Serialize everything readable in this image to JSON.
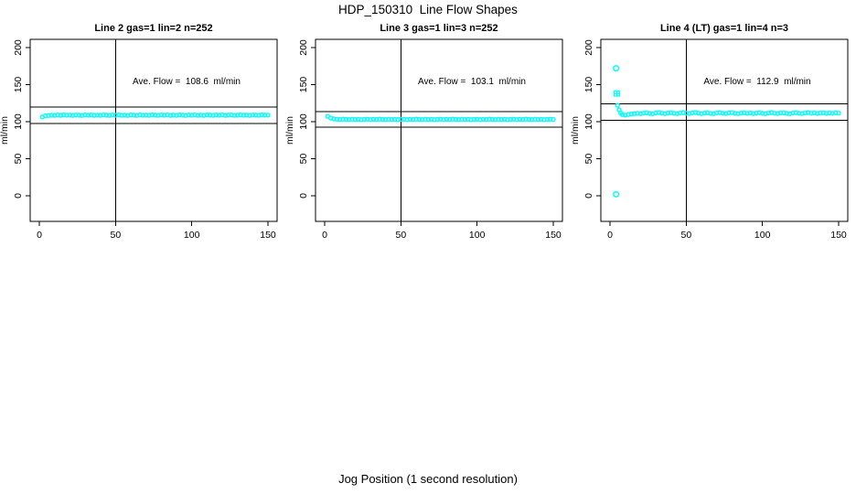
{
  "page": {
    "title": "HDP_150310  Line Flow Shapes",
    "xlabel": "Jog Position (1 second resolution)"
  },
  "colors": {
    "points": "#00FFFF",
    "axis": "#000000",
    "background": "#FFFFFF"
  },
  "chart_data": [
    {
      "type": "scatter",
      "title": "Line 2 gas=1 lin=2 n=252",
      "annotation": "Ave. Flow =  108.6  ml/min",
      "ave_flow_ml_min": 108.6,
      "n": 252,
      "ylabel": "ml/min",
      "xlim": [
        0,
        150
      ],
      "ylim": [
        0,
        200
      ],
      "xticks": [
        0,
        50,
        100,
        150
      ],
      "yticks": [
        0,
        50,
        100,
        150,
        200
      ],
      "vline_x": 50,
      "hlines": [
        119.5,
        97.7
      ],
      "marker": "circle",
      "points": [
        [
          2,
          106.4
        ],
        [
          4,
          107.9
        ],
        [
          6,
          108.3
        ],
        [
          8,
          108.7
        ],
        [
          10,
          108.5
        ],
        [
          12,
          109.0
        ],
        [
          14,
          108.6
        ],
        [
          16,
          109.1
        ],
        [
          18,
          108.7
        ],
        [
          20,
          108.9
        ],
        [
          22,
          108.5
        ],
        [
          24,
          109.0
        ],
        [
          26,
          108.8
        ],
        [
          28,
          108.4
        ],
        [
          30,
          109.1
        ],
        [
          32,
          108.7
        ],
        [
          34,
          109.0
        ],
        [
          36,
          108.5
        ],
        [
          38,
          108.9
        ],
        [
          40,
          108.6
        ],
        [
          42,
          109.2
        ],
        [
          44,
          108.8
        ],
        [
          46,
          108.5
        ],
        [
          48,
          109.0
        ],
        [
          50,
          108.7
        ],
        [
          52,
          109.1
        ],
        [
          54,
          108.6
        ],
        [
          56,
          108.9
        ],
        [
          58,
          108.4
        ],
        [
          60,
          109.0
        ],
        [
          62,
          108.8
        ],
        [
          64,
          108.5
        ],
        [
          66,
          109.2
        ],
        [
          68,
          108.7
        ],
        [
          70,
          108.9
        ],
        [
          72,
          108.5
        ],
        [
          74,
          109.1
        ],
        [
          76,
          108.8
        ],
        [
          78,
          108.6
        ],
        [
          80,
          109.0
        ],
        [
          82,
          108.7
        ],
        [
          84,
          109.2
        ],
        [
          86,
          108.5
        ],
        [
          88,
          108.9
        ],
        [
          90,
          108.6
        ],
        [
          92,
          109.1
        ],
        [
          94,
          108.8
        ],
        [
          96,
          108.4
        ],
        [
          98,
          109.0
        ],
        [
          100,
          108.7
        ],
        [
          102,
          109.2
        ],
        [
          104,
          108.6
        ],
        [
          106,
          108.9
        ],
        [
          108,
          108.5
        ],
        [
          110,
          109.1
        ],
        [
          112,
          108.8
        ],
        [
          114,
          108.6
        ],
        [
          116,
          109.0
        ],
        [
          118,
          108.7
        ],
        [
          120,
          109.2
        ],
        [
          122,
          108.5
        ],
        [
          124,
          108.9
        ],
        [
          126,
          109.0
        ],
        [
          128,
          108.6
        ],
        [
          130,
          108.8
        ],
        [
          132,
          109.1
        ],
        [
          134,
          108.7
        ],
        [
          136,
          108.9
        ],
        [
          138,
          108.5
        ],
        [
          140,
          109.0
        ],
        [
          142,
          108.8
        ],
        [
          144,
          108.6
        ],
        [
          146,
          109.1
        ],
        [
          148,
          108.8
        ],
        [
          150,
          108.9
        ]
      ],
      "outliers": []
    },
    {
      "type": "scatter",
      "title": "Line 3 gas=1 lin=3 n=252",
      "annotation": "Ave. Flow =  103.1  ml/min",
      "ave_flow_ml_min": 103.1,
      "n": 252,
      "ylabel": "ml/min",
      "xlim": [
        0,
        150
      ],
      "ylim": [
        0,
        200
      ],
      "xticks": [
        0,
        50,
        100,
        150
      ],
      "yticks": [
        0,
        50,
        100,
        150,
        200
      ],
      "vline_x": 50,
      "hlines": [
        113.4,
        92.8
      ],
      "marker": "circle",
      "points": [
        [
          2,
          107.2
        ],
        [
          4,
          104.8
        ],
        [
          6,
          103.8
        ],
        [
          8,
          103.3
        ],
        [
          10,
          103.0
        ],
        [
          12,
          103.4
        ],
        [
          14,
          103.1
        ],
        [
          16,
          102.9
        ],
        [
          18,
          103.3
        ],
        [
          20,
          103.0
        ],
        [
          22,
          103.2
        ],
        [
          24,
          102.8
        ],
        [
          26,
          103.1
        ],
        [
          28,
          103.3
        ],
        [
          30,
          102.9
        ],
        [
          32,
          103.2
        ],
        [
          34,
          103.0
        ],
        [
          36,
          103.4
        ],
        [
          38,
          103.1
        ],
        [
          40,
          102.9
        ],
        [
          42,
          103.3
        ],
        [
          44,
          103.0
        ],
        [
          46,
          103.2
        ],
        [
          48,
          102.8
        ],
        [
          50,
          103.1
        ],
        [
          52,
          103.3
        ],
        [
          54,
          102.9
        ],
        [
          56,
          103.2
        ],
        [
          58,
          103.0
        ],
        [
          60,
          103.4
        ],
        [
          62,
          103.1
        ],
        [
          64,
          102.9
        ],
        [
          66,
          103.3
        ],
        [
          68,
          103.0
        ],
        [
          70,
          103.2
        ],
        [
          72,
          102.8
        ],
        [
          74,
          103.1
        ],
        [
          76,
          103.3
        ],
        [
          78,
          102.9
        ],
        [
          80,
          103.2
        ],
        [
          82,
          103.0
        ],
        [
          84,
          103.4
        ],
        [
          86,
          103.1
        ],
        [
          88,
          102.9
        ],
        [
          90,
          103.3
        ],
        [
          92,
          103.0
        ],
        [
          94,
          103.2
        ],
        [
          96,
          102.8
        ],
        [
          98,
          103.1
        ],
        [
          100,
          103.3
        ],
        [
          102,
          102.9
        ],
        [
          104,
          103.2
        ],
        [
          106,
          103.0
        ],
        [
          108,
          103.4
        ],
        [
          110,
          103.1
        ],
        [
          112,
          102.9
        ],
        [
          114,
          103.3
        ],
        [
          116,
          103.0
        ],
        [
          118,
          103.2
        ],
        [
          120,
          102.8
        ],
        [
          122,
          103.1
        ],
        [
          124,
          103.3
        ],
        [
          126,
          102.9
        ],
        [
          128,
          103.2
        ],
        [
          130,
          103.0
        ],
        [
          132,
          103.4
        ],
        [
          134,
          103.1
        ],
        [
          136,
          102.9
        ],
        [
          138,
          103.3
        ],
        [
          140,
          103.0
        ],
        [
          142,
          103.2
        ],
        [
          144,
          102.8
        ],
        [
          146,
          103.1
        ],
        [
          148,
          103.3
        ],
        [
          150,
          103.0
        ]
      ],
      "outliers": []
    },
    {
      "type": "scatter",
      "title": "Line 4 (LT) gas=1 lin=4 n=3",
      "annotation": "Ave. Flow =  112.9  ml/min",
      "ave_flow_ml_min": 112.9,
      "n": 3,
      "ylabel": "ml/min",
      "xlim": [
        0,
        150
      ],
      "ylim": [
        0,
        200
      ],
      "xticks": [
        0,
        50,
        100,
        150
      ],
      "yticks": [
        0,
        50,
        100,
        150,
        200
      ],
      "vline_x": 50,
      "hlines": [
        124.2,
        101.6
      ],
      "marker": "circle",
      "points": [
        [
          5,
          122.0
        ],
        [
          6,
          116.0
        ],
        [
          7,
          111.8
        ],
        [
          8,
          109.6
        ],
        [
          10,
          108.9
        ],
        [
          12,
          109.6
        ],
        [
          14,
          110.4
        ],
        [
          16,
          110.9
        ],
        [
          18,
          111.3
        ],
        [
          20,
          110.8
        ],
        [
          22,
          111.5
        ],
        [
          24,
          112.0
        ],
        [
          26,
          111.2
        ],
        [
          28,
          110.7
        ],
        [
          30,
          111.8
        ],
        [
          32,
          112.3
        ],
        [
          34,
          111.5
        ],
        [
          36,
          110.9
        ],
        [
          38,
          111.6
        ],
        [
          40,
          112.1
        ],
        [
          42,
          111.3
        ],
        [
          44,
          110.8
        ],
        [
          46,
          111.7
        ],
        [
          48,
          112.2
        ],
        [
          50,
          111.4
        ],
        [
          52,
          111.0
        ],
        [
          54,
          111.8
        ],
        [
          56,
          112.3
        ],
        [
          58,
          111.5
        ],
        [
          60,
          110.9
        ],
        [
          62,
          111.6
        ],
        [
          64,
          112.0
        ],
        [
          66,
          111.2
        ],
        [
          68,
          110.8
        ],
        [
          70,
          111.7
        ],
        [
          72,
          112.2
        ],
        [
          74,
          111.4
        ],
        [
          76,
          111.0
        ],
        [
          78,
          111.8
        ],
        [
          80,
          112.1
        ],
        [
          82,
          111.3
        ],
        [
          84,
          110.9
        ],
        [
          86,
          111.6
        ],
        [
          88,
          112.0
        ],
        [
          90,
          111.2
        ],
        [
          92,
          111.8
        ],
        [
          94,
          111.0
        ],
        [
          96,
          111.5
        ],
        [
          98,
          112.1
        ],
        [
          100,
          111.3
        ],
        [
          102,
          110.9
        ],
        [
          104,
          111.7
        ],
        [
          106,
          112.2
        ],
        [
          108,
          111.4
        ],
        [
          110,
          111.0
        ],
        [
          112,
          111.8
        ],
        [
          114,
          112.0
        ],
        [
          116,
          111.2
        ],
        [
          118,
          110.8
        ],
        [
          120,
          111.6
        ],
        [
          122,
          112.1
        ],
        [
          124,
          111.3
        ],
        [
          126,
          111.0
        ],
        [
          128,
          111.7
        ],
        [
          130,
          112.2
        ],
        [
          132,
          111.4
        ],
        [
          134,
          111.9
        ],
        [
          136,
          111.1
        ],
        [
          138,
          111.6
        ],
        [
          140,
          112.0
        ],
        [
          142,
          111.2
        ],
        [
          144,
          111.8
        ],
        [
          146,
          111.4
        ],
        [
          148,
          111.9
        ],
        [
          150,
          111.5
        ]
      ],
      "outliers": [
        {
          "x": 4,
          "y": 172,
          "marker": "circle"
        },
        {
          "x": 4.5,
          "y": 138,
          "marker": "square-plus"
        },
        {
          "x": 4,
          "y": 2,
          "marker": "circle"
        }
      ]
    }
  ]
}
